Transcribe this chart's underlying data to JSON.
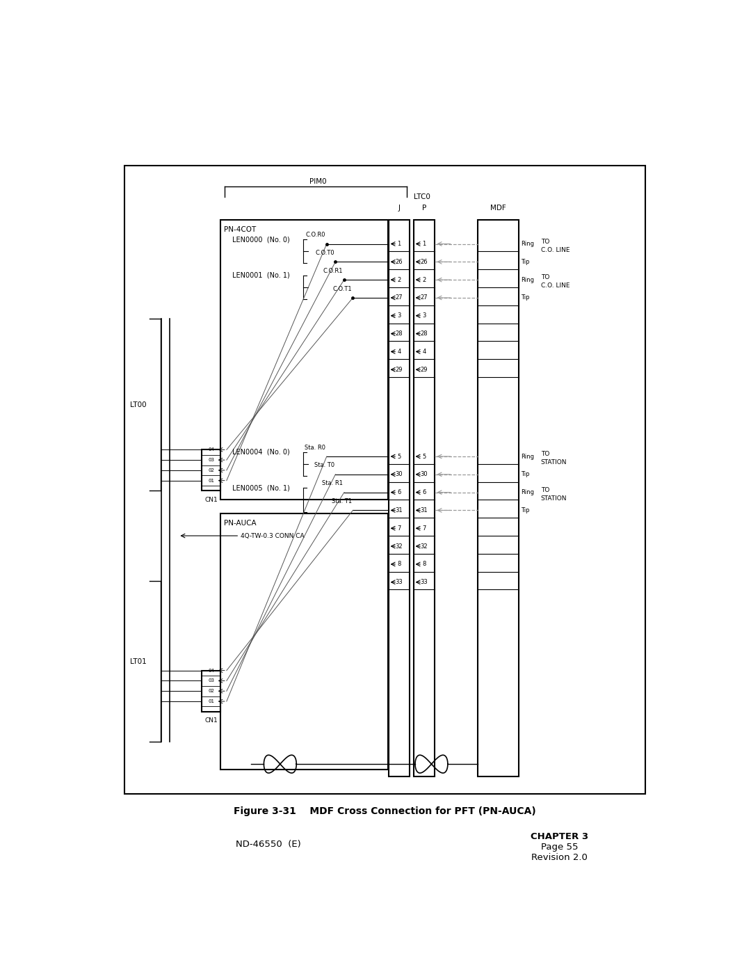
{
  "figure_caption": "Figure 3-31    MDF Cross Connection for PFT (PN-AUCA)",
  "footer_left": "ND-46550  (E)",
  "footer_right_lines": [
    "CHAPTER 3",
    "Page 55",
    "Revision 2.0"
  ],
  "bg_color": "#ffffff",
  "line_color": "#000000",
  "gray_color": "#999999",
  "pim0_label": "PIM0",
  "ltc0_label": "LTC0",
  "j_label": "J",
  "p_label": "P",
  "mdf_label": "MDF",
  "pn4cot_label": "PN-4COT",
  "pnauca_label": "PN-AUCA",
  "lt00_label": "LT00",
  "lt01_label": "LT01",
  "cn1_label": "CN1",
  "len0000_label": "LEN0000  (No. 0)",
  "len0001_label": "LEN0001  (No. 1)",
  "len0004_label": "LEN0004  (No. 0)",
  "len0005_label": "LEN0005  (No. 1)",
  "cor0_label": "C.O.R0",
  "cot0_label": "C.O.T0",
  "cor1_label": "C.O.R1",
  "cot1_label": "C.O.T1",
  "sta_r0_label": "Sta. R0",
  "sta_t0_label": "Sta. T0",
  "sta_r1_label": "Sta. R1",
  "sta_t1_label": "Sta. T1",
  "conn_ca_label": "4Q-TW-0.3 CONN CA",
  "ring_label": "Ring",
  "tip_label": "Tip"
}
